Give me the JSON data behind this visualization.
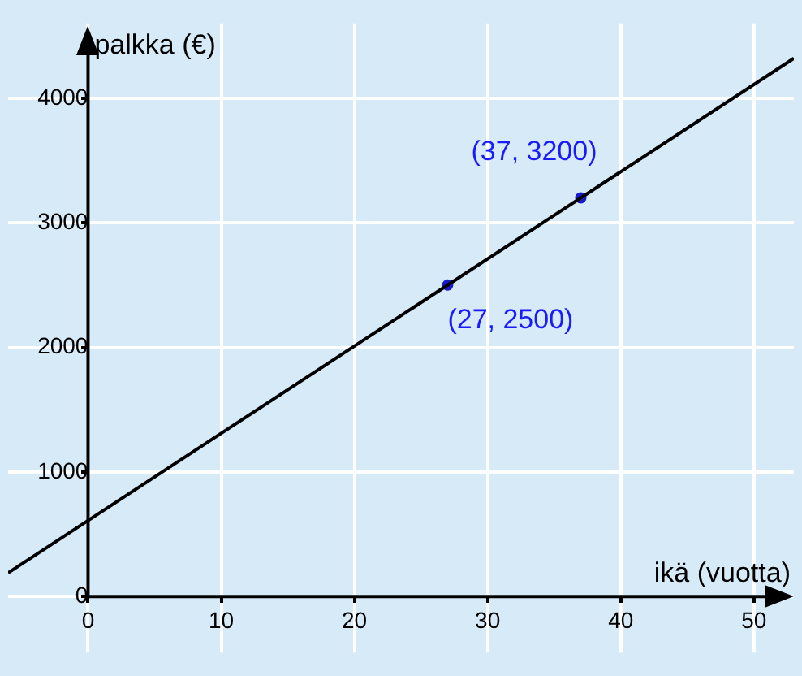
{
  "chart_data": {
    "type": "line",
    "xlabel": "ikä (vuotta)",
    "ylabel": "palkka (€)",
    "xlim": [
      -6,
      53
    ],
    "ylim": [
      -450,
      4600
    ],
    "xticks": [
      0,
      10,
      20,
      30,
      40,
      50
    ],
    "yticks": [
      0,
      1000,
      2000,
      3000,
      4000
    ],
    "grid": true,
    "legend": false,
    "series": [
      {
        "type": "line",
        "color": "#000000",
        "x": [
          -6,
          53
        ],
        "values": [
          190,
          4320
        ],
        "marker": "none"
      },
      {
        "type": "scatter",
        "color": "#1a1acc",
        "x": [
          27,
          37
        ],
        "values": [
          2500,
          3200
        ],
        "marker": "circle"
      }
    ],
    "annotations": [
      {
        "text": "(27, 2500)",
        "x": 27,
        "y": 2500
      },
      {
        "text": "(37, 3200)",
        "x": 37,
        "y": 3200
      }
    ]
  }
}
